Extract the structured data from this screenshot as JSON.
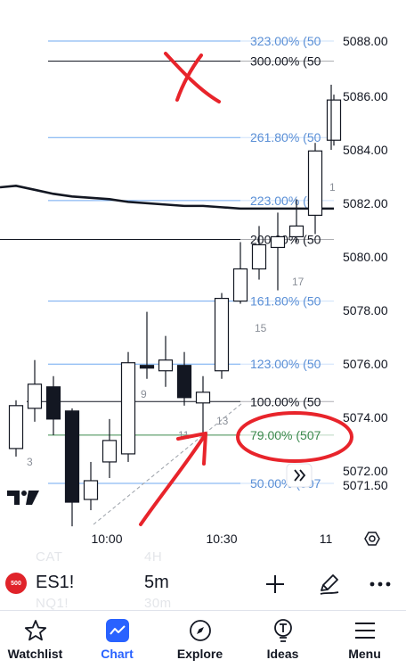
{
  "colors": {
    "fib": "#6fa8f0",
    "fib_label": "#5a8fd6",
    "black_line": "#131722",
    "ma_blue": "#4a7fe6",
    "ma_black": "#131722",
    "fib79": "#3c8a4e",
    "annotation_red": "#e8242b",
    "accent": "#2962ff"
  },
  "price_axis": {
    "labels": [
      "5088.00",
      "5086.00",
      "5084.00",
      "5082.00",
      "5080.00",
      "5078.00",
      "5076.00",
      "5074.00",
      "5072.00",
      "5071.50"
    ]
  },
  "time_axis": {
    "labels": [
      "10:00",
      "10:30",
      "11"
    ]
  },
  "fib_levels": [
    {
      "label": "323.00% (50",
      "price": 5088.0,
      "color": "#6fa8f0"
    },
    {
      "label": "300.00% (50",
      "price": 5087.25,
      "color": "#131722"
    },
    {
      "label": "261.80% (50",
      "price": 5084.4,
      "color": "#6fa8f0"
    },
    {
      "label": "223.00% (50",
      "price": 5082.05,
      "color": "#6fa8f0"
    },
    {
      "label": "200.00% (50",
      "price": 5080.6,
      "color": "#131722"
    },
    {
      "label": "161.80% (50",
      "price": 5078.3,
      "color": "#6fa8f0"
    },
    {
      "label": "123.00% (50",
      "price": 5075.95,
      "color": "#6fa8f0"
    },
    {
      "label": "100.00% (50",
      "price": 5074.55,
      "color": "#131722"
    },
    {
      "label": "79.00% (507",
      "price": 5073.3,
      "color": "#3c8a4e"
    },
    {
      "label": "50.00% (507",
      "price": 5071.5,
      "color": "#6fa8f0"
    }
  ],
  "bar_counts": [
    "3",
    "9",
    "11",
    "13",
    "15",
    "17",
    "1"
  ],
  "chart_data": {
    "type": "candlestick",
    "y_range": [
      5068.5,
      5089.5
    ],
    "candles": [
      {
        "o": 5072.8,
        "c": 5074.4,
        "h": 5074.6,
        "l": 5072.5
      },
      {
        "o": 5074.3,
        "c": 5075.2,
        "h": 5076.1,
        "l": 5073.8
      },
      {
        "o": 5075.1,
        "c": 5073.9,
        "h": 5075.5,
        "l": 5073.3
      },
      {
        "o": 5074.2,
        "c": 5070.8,
        "h": 5074.3,
        "l": 5069.9
      },
      {
        "o": 5070.9,
        "c": 5071.6,
        "h": 5072.3,
        "l": 5070.5
      },
      {
        "o": 5072.3,
        "c": 5073.1,
        "h": 5073.9,
        "l": 5071.7
      },
      {
        "o": 5072.6,
        "c": 5076.0,
        "h": 5076.4,
        "l": 5072.3
      },
      {
        "o": 5075.9,
        "c": 5075.8,
        "h": 5077.9,
        "l": 5075.4
      },
      {
        "o": 5075.7,
        "c": 5076.1,
        "h": 5077.0,
        "l": 5075.1
      },
      {
        "o": 5075.9,
        "c": 5074.7,
        "h": 5076.4,
        "l": 5074.4
      },
      {
        "o": 5074.5,
        "c": 5074.9,
        "h": 5075.5,
        "l": 5073.2
      },
      {
        "o": 5075.7,
        "c": 5078.4,
        "h": 5078.6,
        "l": 5075.4
      },
      {
        "o": 5078.3,
        "c": 5079.5,
        "h": 5080.5,
        "l": 5078.2
      },
      {
        "o": 5079.5,
        "c": 5080.4,
        "h": 5081.1,
        "l": 5079.1
      },
      {
        "o": 5080.3,
        "c": 5080.7,
        "h": 5081.6,
        "l": 5078.7
      },
      {
        "o": 5080.7,
        "c": 5081.1,
        "h": 5082.1,
        "l": 5080.5
      },
      {
        "o": 5081.5,
        "c": 5083.9,
        "h": 5084.2,
        "l": 5080.8
      },
      {
        "o": 5084.3,
        "c": 5085.8,
        "h": 5086.0,
        "l": 5084.1
      }
    ],
    "ma_blue": [
      5083.8,
      5082.7,
      5081.7,
      5080.8,
      5080.1,
      5079.3,
      5078.7,
      5078.5,
      5078.3,
      5078.2,
      5078.2,
      5078.4,
      5078.5,
      5078.7,
      5079.0,
      5079.4,
      5079.7,
      5080.1
    ],
    "ma_black": [
      5082.6,
      5082.45,
      5082.3,
      5082.2,
      5082.15,
      5082.1,
      5082.0,
      5081.95,
      5081.9,
      5081.85,
      5081.85,
      5081.8,
      5081.75,
      5081.75,
      5081.75,
      5081.75,
      5081.75,
      5081.75
    ]
  },
  "toolbar": {
    "symbol_badge": "500",
    "symbol": "ES1!",
    "interval": "5m",
    "ghost_1": "CAT",
    "ghost_2": "4H",
    "ghost_3": "NQ1!",
    "ghost_4": "30m"
  },
  "nav": {
    "watchlist": "Watchlist",
    "chart": "Chart",
    "explore": "Explore",
    "ideas": "Ideas",
    "menu": "Menu"
  }
}
